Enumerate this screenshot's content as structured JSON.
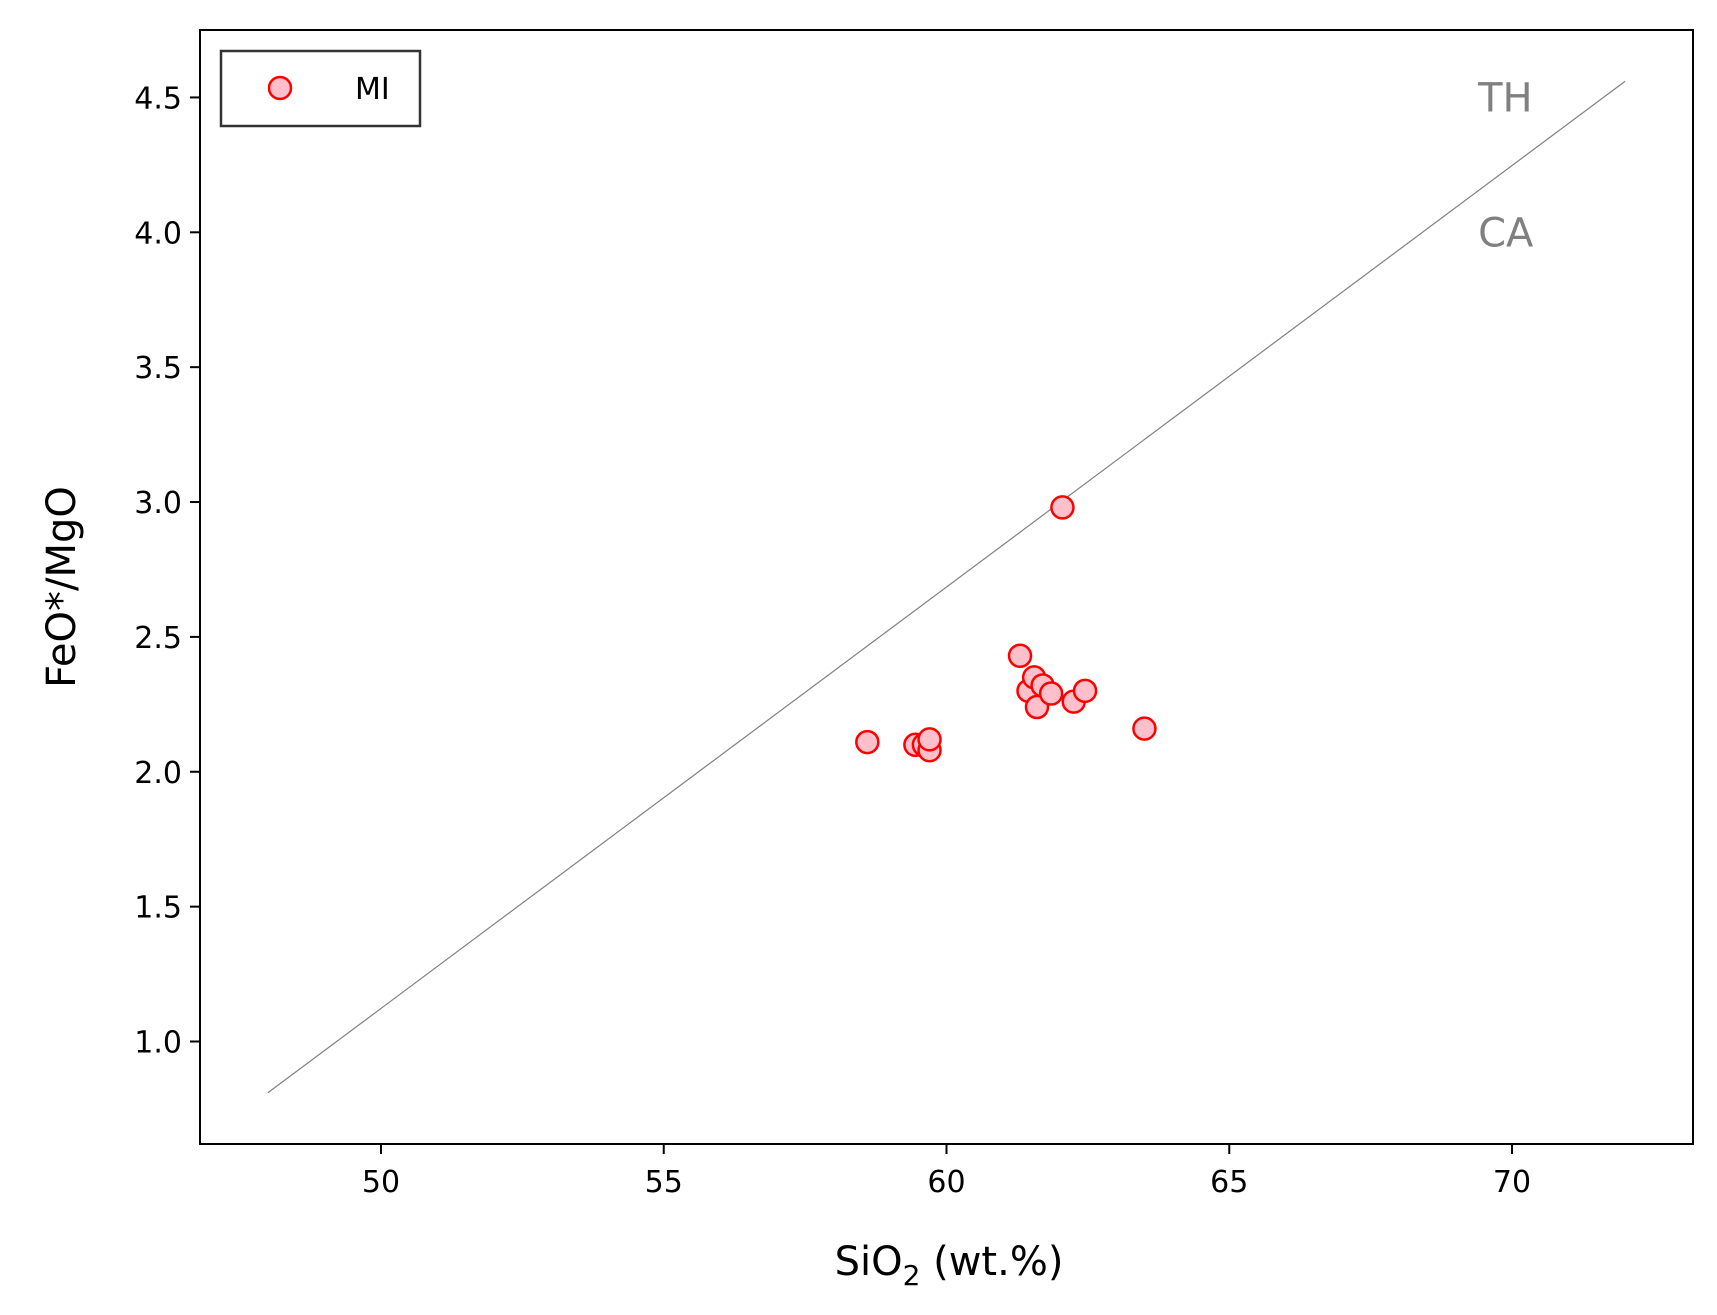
{
  "chart_data": {
    "type": "scatter",
    "xlabel": {
      "base": "SiO",
      "sub": "2",
      "suffix": " (wt.%)"
    },
    "ylabel": "FeO*/MgO",
    "xlim": [
      46.8,
      73.2
    ],
    "ylim": [
      0.62,
      4.75
    ],
    "xticks": [
      50,
      55,
      60,
      65,
      70
    ],
    "yticks": [
      1.0,
      1.5,
      2.0,
      2.5,
      3.0,
      3.5,
      4.0,
      4.5
    ],
    "grid": false,
    "legend": {
      "position": "top-left"
    },
    "series": [
      {
        "name": "MI",
        "marker_fill": "#ffc0cb",
        "marker_edge": "#ff0000",
        "points": [
          [
            58.6,
            2.11
          ],
          [
            59.45,
            2.1
          ],
          [
            59.6,
            2.1
          ],
          [
            59.7,
            2.08
          ],
          [
            59.7,
            2.12
          ],
          [
            61.3,
            2.43
          ],
          [
            61.45,
            2.3
          ],
          [
            61.55,
            2.35
          ],
          [
            61.7,
            2.32
          ],
          [
            61.6,
            2.24
          ],
          [
            61.85,
            2.29
          ],
          [
            62.05,
            2.98
          ],
          [
            62.25,
            2.26
          ],
          [
            62.45,
            2.3
          ],
          [
            63.5,
            2.16
          ]
        ]
      }
    ],
    "divider_line": {
      "x": [
        48,
        72
      ],
      "y": [
        0.81,
        4.56
      ],
      "color": "#808080"
    },
    "annotations": [
      {
        "text": "TH",
        "x": 69.4,
        "y": 4.5,
        "color": "#808080"
      },
      {
        "text": "CA",
        "x": 69.4,
        "y": 4.0,
        "color": "#808080"
      }
    ]
  }
}
